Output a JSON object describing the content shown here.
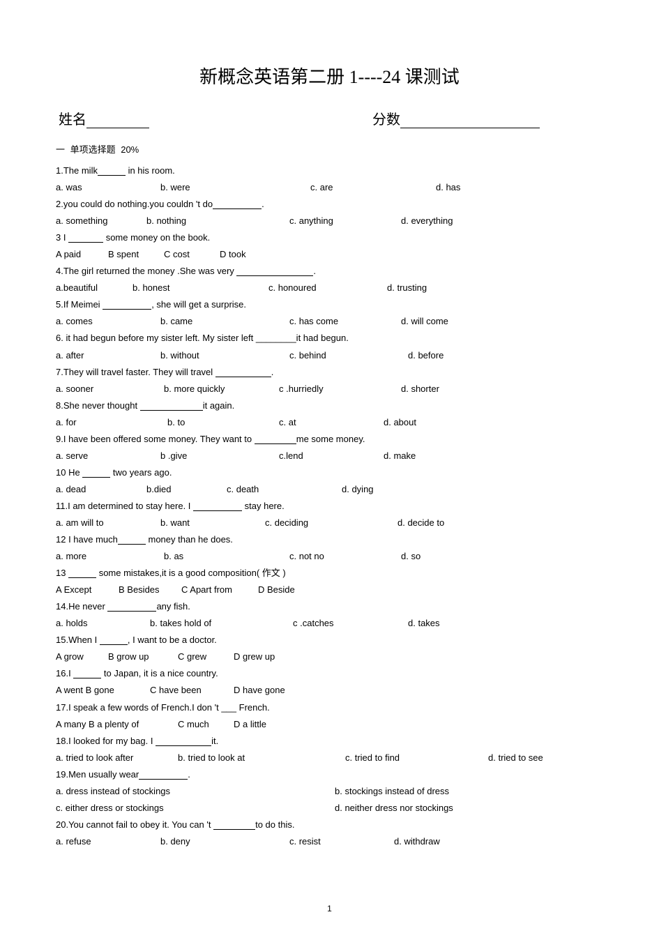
{
  "title": "新概念英语第二册   1----24 课测试",
  "name_label": "姓名",
  "score_label": "分数",
  "section1": "一  单项选择题   20%",
  "page_number": "1",
  "questions": [
    {
      "stem_prefix": "1.The milk",
      "stem_suffix": " in his room.",
      "blank": "w40",
      "opts": [
        "a. was",
        "b. were",
        "c. are",
        "d. has"
      ],
      "widths": [
        150,
        215,
        180,
        0
      ]
    },
    {
      "stem_prefix": "2.you could do nothing.you couldn 't do",
      "stem_suffix": ".",
      "blank": "w70",
      "opts": [
        "a. something",
        "b. nothing",
        "c. anything",
        "d. everything"
      ],
      "widths": [
        130,
        205,
        160,
        0
      ]
    },
    {
      "stem_prefix": "3 I ",
      "stem_suffix": " some money on the book.",
      "blank": "w50",
      "opts": [
        "A paid",
        "B spent",
        "C cost",
        "D took"
      ],
      "widths": [
        75,
        80,
        80,
        0
      ]
    },
    {
      "stem_prefix": "4.The girl returned the money .She was very ",
      "stem_suffix": ".",
      "blank": "w110",
      "opts": [
        "a.beautiful",
        "b. honest",
        "c. honoured",
        "d. trusting"
      ],
      "widths": [
        110,
        195,
        170,
        0
      ]
    },
    {
      "stem_prefix": "5.If   Meimei ",
      "stem_suffix": ", she will get a surprise.",
      "blank": "w70",
      "opts": [
        "a. comes",
        "b. came",
        "c. has come",
        "d. will come"
      ],
      "widths": [
        150,
        185,
        160,
        0
      ]
    },
    {
      "stem_full": "6. it had begun before my sister left. My sister left ________it had begun.",
      "opts": [
        "a. after",
        "b. without",
        "c. behind",
        "d. before"
      ],
      "widths": [
        150,
        185,
        170,
        0
      ]
    },
    {
      "stem_prefix": "7.They will travel faster. They will travel ",
      "stem_suffix": ".",
      "blank": "w80",
      "opts": [
        "a. sooner",
        "b. more quickly",
        "c .hurriedly",
        "d. shorter"
      ],
      "widths": [
        155,
        165,
        175,
        0
      ]
    },
    {
      "stem_prefix": "8.She never thought ",
      "stem_suffix": "it again.",
      "blank": "w90",
      "opts": [
        "a. for",
        "b. to",
        "c. at",
        "d. about"
      ],
      "widths": [
        160,
        160,
        150,
        0
      ]
    },
    {
      "stem_prefix": "9.I have been offered some money. They want to ",
      "stem_suffix": "me some money.",
      "blank": "w60",
      "opts": [
        "a. serve",
        "b .give",
        "c.lend",
        "d. make"
      ],
      "widths": [
        150,
        170,
        150,
        0
      ]
    },
    {
      "stem_prefix": "10 He ",
      "stem_suffix": " two years ago.",
      "blank": "w40",
      "opts": [
        "a. dead",
        "b.died",
        "c. death",
        "d. dying"
      ],
      "widths": [
        130,
        115,
        165,
        0
      ]
    },
    {
      "stem_prefix": "11.I am determined to stay here. I ",
      "stem_suffix": "   stay here.",
      "blank": "w70",
      "opts": [
        "a. am will to",
        "b. want",
        "c. deciding",
        "d. decide to"
      ],
      "widths": [
        150,
        150,
        190,
        0
      ]
    },
    {
      "stem_prefix": "12 I have much",
      "stem_suffix": " money than he does.",
      "blank": "w40",
      "opts": [
        "a. more",
        "b. as",
        "c. not no",
        "d. so"
      ],
      "widths": [
        155,
        180,
        160,
        0
      ]
    },
    {
      "stem_prefix": "13 ",
      "stem_suffix": " some mistakes,it is a good composition( 作文 )",
      "blank": "w40",
      "opts": [
        "A Except",
        "B Besides",
        "C Apart from",
        "D Beside"
      ],
      "widths": [
        90,
        90,
        110,
        0
      ]
    },
    {
      "stem_prefix": "14.He never ",
      "stem_suffix": "any fish.",
      "blank": "w70",
      "opts": [
        "a. holds",
        "b. takes hold of",
        "c .catches",
        "d. takes"
      ],
      "widths": [
        135,
        205,
        165,
        0
      ]
    },
    {
      "stem_prefix": "15.When I ",
      "stem_suffix": ", I want to be a doctor.",
      "blank": "w40",
      "opts": [
        "A grow",
        "B grow up",
        "C grew",
        "D grew up"
      ],
      "widths": [
        75,
        100,
        80,
        0
      ]
    },
    {
      "stem_prefix": "16.I ",
      "stem_suffix": " to Japan, it is a nice country.",
      "blank": "w40",
      "opts": [
        "A went B gone",
        "C have been",
        "D have gone"
      ],
      "widths": [
        135,
        120,
        0
      ]
    },
    {
      "stem_full": "17.I speak a few   words of   French.I don 't ___ French.",
      "opts": [
        "A many B a plenty of",
        "C much",
        "D a little"
      ],
      "widths": [
        175,
        80,
        0
      ]
    },
    {
      "stem_prefix": "18.I looked for my bag. I ",
      "stem_suffix": "it.",
      "blank": "w80",
      "opts": [
        "a. tried to look after",
        "b. tried to look at",
        "c. tried to find",
        "d. tried to see"
      ],
      "widths": [
        175,
        240,
        205,
        0
      ]
    },
    {
      "stem_prefix": "19.Men usually wear",
      "stem_suffix": ".",
      "blank": "w70",
      "opts_rows": [
        [
          "a. dress instead of stockings",
          "b. stockings instead of dress"
        ],
        [
          "c. either dress or stockings",
          "d. neither dress nor stockings"
        ]
      ],
      "row_widths": [
        400,
        0
      ]
    },
    {
      "stem_prefix": "20.You cannot fail to obey it. You can 't ",
      "stem_suffix": "to do this.",
      "blank": "w60",
      "opts": [
        "a. refuse",
        "b. deny",
        "c. resist",
        "d. withdraw"
      ],
      "widths": [
        150,
        185,
        150,
        0
      ]
    }
  ]
}
